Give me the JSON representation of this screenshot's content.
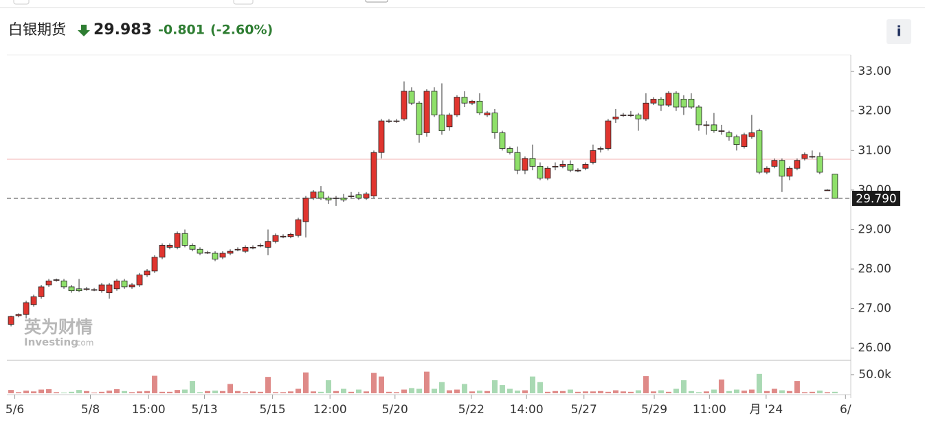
{
  "header": {
    "name": "白银期货",
    "price": "29.983",
    "change": "-0.801",
    "change_pct": "(-2.60%)",
    "info": "i"
  },
  "watermark": {
    "cn": "英为财情",
    "en": "Investing",
    "domain": ".com"
  },
  "chart_data": {
    "type": "candlestick",
    "up_color": "#e0352f",
    "down_color": "#8fe06a",
    "volume_up_color": "#df8a88",
    "volume_down_color": "#a9d9b3",
    "xlim": [
      -0.55,
      111.1
    ],
    "xticks": [
      {
        "value": 0.5,
        "label": "5/6"
      },
      {
        "value": 10.5,
        "label": "5/8"
      },
      {
        "value": 18.2,
        "label": "15:00"
      },
      {
        "value": 25.6,
        "label": "5/13"
      },
      {
        "value": 34.6,
        "label": "5/15"
      },
      {
        "value": 42.2,
        "label": "12:00"
      },
      {
        "value": 50.8,
        "label": "5/20"
      },
      {
        "value": 60.9,
        "label": "5/22"
      },
      {
        "value": 68.2,
        "label": "14:00"
      },
      {
        "value": 75.8,
        "label": "5/27"
      },
      {
        "value": 85.1,
        "label": "5/29"
      },
      {
        "value": 92.4,
        "label": "11:00"
      },
      {
        "value": 99.9,
        "label": "月 '24"
      },
      {
        "value": 110.4,
        "label": "6/"
      }
    ],
    "ylim": [
      25.69,
      33.42
    ],
    "yticks": [
      {
        "value": 26,
        "label": "26.00"
      },
      {
        "value": 27,
        "label": "27.00"
      },
      {
        "value": 28,
        "label": "28.00"
      },
      {
        "value": 29,
        "label": "29.00"
      },
      {
        "value": 30,
        "label": "30.00"
      },
      {
        "value": 31,
        "label": "31.00"
      },
      {
        "value": 32,
        "label": "32.00"
      },
      {
        "value": 33,
        "label": "33.00"
      }
    ],
    "volume_ylim": [
      0,
      83000
    ],
    "volume_ticks": [
      {
        "value": 50000,
        "label": "50.0k"
      }
    ],
    "ref_line": 30.78,
    "ref_color": "#f3b3b3",
    "last_price": {
      "value": 29.79,
      "label": "29.790"
    },
    "candles": [
      {
        "o": 26.6,
        "h": 26.82,
        "l": 26.55,
        "c": 26.8,
        "v": 9000
      },
      {
        "o": 26.82,
        "h": 26.88,
        "l": 26.78,
        "c": 26.85,
        "v": 3000
      },
      {
        "o": 26.85,
        "h": 27.2,
        "l": 26.75,
        "c": 27.15,
        "v": 7000
      },
      {
        "o": 27.1,
        "h": 27.35,
        "l": 27.05,
        "c": 27.3,
        "v": 5000
      },
      {
        "o": 27.3,
        "h": 27.6,
        "l": 27.25,
        "c": 27.55,
        "v": 10000
      },
      {
        "o": 27.6,
        "h": 27.75,
        "l": 27.55,
        "c": 27.7,
        "v": 11000
      },
      {
        "o": 27.72,
        "h": 27.76,
        "l": 27.68,
        "c": 27.73,
        "v": 3000
      },
      {
        "o": 27.7,
        "h": 27.75,
        "l": 27.5,
        "c": 27.55,
        "v": 2000
      },
      {
        "o": 27.55,
        "h": 27.6,
        "l": 27.4,
        "c": 27.45,
        "v": 4000
      },
      {
        "o": 27.5,
        "h": 27.75,
        "l": 27.42,
        "c": 27.45,
        "v": 9000
      },
      {
        "o": 27.5,
        "h": 27.55,
        "l": 27.45,
        "c": 27.5,
        "v": 6000
      },
      {
        "o": 27.48,
        "h": 27.52,
        "l": 27.44,
        "c": 27.48,
        "v": 2000
      },
      {
        "o": 27.45,
        "h": 27.65,
        "l": 27.4,
        "c": 27.6,
        "v": 4000
      },
      {
        "o": 27.4,
        "h": 27.65,
        "l": 27.25,
        "c": 27.6,
        "v": 7000
      },
      {
        "o": 27.5,
        "h": 27.75,
        "l": 27.45,
        "c": 27.7,
        "v": 11000
      },
      {
        "o": 27.7,
        "h": 27.75,
        "l": 27.5,
        "c": 27.55,
        "v": 6000
      },
      {
        "o": 27.55,
        "h": 27.65,
        "l": 27.5,
        "c": 27.6,
        "v": 3000
      },
      {
        "o": 27.6,
        "h": 27.9,
        "l": 27.55,
        "c": 27.85,
        "v": 5000
      },
      {
        "o": 27.85,
        "h": 28.0,
        "l": 27.8,
        "c": 27.95,
        "v": 6000
      },
      {
        "o": 27.95,
        "h": 28.35,
        "l": 27.9,
        "c": 28.3,
        "v": 47000
      },
      {
        "o": 28.3,
        "h": 28.65,
        "l": 28.25,
        "c": 28.6,
        "v": 4000
      },
      {
        "o": 28.55,
        "h": 28.65,
        "l": 28.5,
        "c": 28.6,
        "v": 4000
      },
      {
        "o": 28.55,
        "h": 28.95,
        "l": 28.5,
        "c": 28.9,
        "v": 9000
      },
      {
        "o": 28.9,
        "h": 29.0,
        "l": 28.55,
        "c": 28.6,
        "v": 10000
      },
      {
        "o": 28.6,
        "h": 28.65,
        "l": 28.45,
        "c": 28.5,
        "v": 33000
      },
      {
        "o": 28.5,
        "h": 28.55,
        "l": 28.35,
        "c": 28.4,
        "v": 3000
      },
      {
        "o": 28.42,
        "h": 28.46,
        "l": 28.38,
        "c": 28.42,
        "v": 6000
      },
      {
        "o": 28.4,
        "h": 28.45,
        "l": 28.2,
        "c": 28.25,
        "v": 7000
      },
      {
        "o": 28.3,
        "h": 28.45,
        "l": 28.25,
        "c": 28.4,
        "v": 6000
      },
      {
        "o": 28.4,
        "h": 28.5,
        "l": 28.35,
        "c": 28.45,
        "v": 25000
      },
      {
        "o": 28.5,
        "h": 28.55,
        "l": 28.45,
        "c": 28.5,
        "v": 6000
      },
      {
        "o": 28.45,
        "h": 28.6,
        "l": 28.4,
        "c": 28.55,
        "v": 3000
      },
      {
        "o": 28.55,
        "h": 28.6,
        "l": 28.5,
        "c": 28.55,
        "v": 5000
      },
      {
        "o": 28.6,
        "h": 28.65,
        "l": 28.55,
        "c": 28.6,
        "v": 4000
      },
      {
        "o": 28.55,
        "h": 29.0,
        "l": 28.35,
        "c": 28.7,
        "v": 44000
      },
      {
        "o": 28.7,
        "h": 28.9,
        "l": 28.65,
        "c": 28.85,
        "v": 3000
      },
      {
        "o": 28.83,
        "h": 28.88,
        "l": 28.78,
        "c": 28.83,
        "v": 3000
      },
      {
        "o": 28.82,
        "h": 28.92,
        "l": 28.78,
        "c": 28.88,
        "v": 5000
      },
      {
        "o": 28.85,
        "h": 29.3,
        "l": 28.8,
        "c": 29.25,
        "v": 12000
      },
      {
        "o": 29.2,
        "h": 29.85,
        "l": 28.8,
        "c": 29.8,
        "v": 56000
      },
      {
        "o": 29.8,
        "h": 30.0,
        "l": 29.75,
        "c": 29.95,
        "v": 5000
      },
      {
        "o": 29.95,
        "h": 30.1,
        "l": 29.75,
        "c": 29.8,
        "v": 4000
      },
      {
        "o": 29.8,
        "h": 29.85,
        "l": 29.65,
        "c": 29.75,
        "v": 35000
      },
      {
        "o": 29.8,
        "h": 29.85,
        "l": 29.6,
        "c": 29.8,
        "v": 6000
      },
      {
        "o": 29.8,
        "h": 29.9,
        "l": 29.7,
        "c": 29.75,
        "v": 12000
      },
      {
        "o": 29.85,
        "h": 29.95,
        "l": 29.8,
        "c": 29.85,
        "v": 4000
      },
      {
        "o": 29.88,
        "h": 29.95,
        "l": 29.75,
        "c": 29.8,
        "v": 10000
      },
      {
        "o": 29.8,
        "h": 29.95,
        "l": 29.75,
        "c": 29.9,
        "v": 5000
      },
      {
        "o": 29.85,
        "h": 31.0,
        "l": 29.8,
        "c": 30.95,
        "v": 55000
      },
      {
        "o": 30.95,
        "h": 31.8,
        "l": 30.8,
        "c": 31.75,
        "v": 45000
      },
      {
        "o": 31.75,
        "h": 31.8,
        "l": 31.7,
        "c": 31.75,
        "v": 4000
      },
      {
        "o": 31.75,
        "h": 31.8,
        "l": 31.7,
        "c": 31.75,
        "v": 3000
      },
      {
        "o": 31.8,
        "h": 32.75,
        "l": 31.75,
        "c": 32.5,
        "v": 10000
      },
      {
        "o": 32.5,
        "h": 32.6,
        "l": 32.15,
        "c": 32.2,
        "v": 14000
      },
      {
        "o": 32.2,
        "h": 32.25,
        "l": 31.2,
        "c": 31.4,
        "v": 12000
      },
      {
        "o": 31.45,
        "h": 32.55,
        "l": 31.35,
        "c": 32.5,
        "v": 58000
      },
      {
        "o": 32.5,
        "h": 32.6,
        "l": 31.85,
        "c": 31.9,
        "v": 12000
      },
      {
        "o": 31.9,
        "h": 32.7,
        "l": 31.4,
        "c": 31.5,
        "v": 30000
      },
      {
        "o": 31.6,
        "h": 31.95,
        "l": 31.5,
        "c": 31.9,
        "v": 8000
      },
      {
        "o": 31.9,
        "h": 32.4,
        "l": 31.85,
        "c": 32.35,
        "v": 10000
      },
      {
        "o": 32.35,
        "h": 32.5,
        "l": 32.1,
        "c": 32.2,
        "v": 25000
      },
      {
        "o": 32.2,
        "h": 32.28,
        "l": 32.15,
        "c": 32.25,
        "v": 5000
      },
      {
        "o": 32.25,
        "h": 32.45,
        "l": 31.9,
        "c": 31.95,
        "v": 7000
      },
      {
        "o": 31.9,
        "h": 32.0,
        "l": 31.85,
        "c": 31.95,
        "v": 6000
      },
      {
        "o": 31.95,
        "h": 32.05,
        "l": 31.3,
        "c": 31.45,
        "v": 35000
      },
      {
        "o": 31.45,
        "h": 31.5,
        "l": 31.0,
        "c": 31.05,
        "v": 22000
      },
      {
        "o": 31.05,
        "h": 31.1,
        "l": 30.9,
        "c": 30.95,
        "v": 12000
      },
      {
        "o": 30.95,
        "h": 31.1,
        "l": 30.4,
        "c": 30.5,
        "v": 7000
      },
      {
        "o": 30.5,
        "h": 30.85,
        "l": 30.4,
        "c": 30.8,
        "v": 8000
      },
      {
        "o": 30.8,
        "h": 31.15,
        "l": 30.5,
        "c": 30.6,
        "v": 45000
      },
      {
        "o": 30.6,
        "h": 30.7,
        "l": 30.25,
        "c": 30.3,
        "v": 30000
      },
      {
        "o": 30.3,
        "h": 30.6,
        "l": 30.25,
        "c": 30.55,
        "v": 4000
      },
      {
        "o": 30.6,
        "h": 30.7,
        "l": 30.5,
        "c": 30.6,
        "v": 6000
      },
      {
        "o": 30.6,
        "h": 30.75,
        "l": 30.55,
        "c": 30.65,
        "v": 6000
      },
      {
        "o": 30.65,
        "h": 30.75,
        "l": 30.45,
        "c": 30.5,
        "v": 10000
      },
      {
        "o": 30.5,
        "h": 30.55,
        "l": 30.45,
        "c": 30.5,
        "v": 4000
      },
      {
        "o": 30.55,
        "h": 30.7,
        "l": 30.5,
        "c": 30.65,
        "v": 5000
      },
      {
        "o": 30.7,
        "h": 31.15,
        "l": 30.65,
        "c": 31.0,
        "v": 5000
      },
      {
        "o": 31.05,
        "h": 31.1,
        "l": 30.95,
        "c": 31.05,
        "v": 6000
      },
      {
        "o": 31.05,
        "h": 31.8,
        "l": 31.0,
        "c": 31.75,
        "v": 4000
      },
      {
        "o": 31.8,
        "h": 32.05,
        "l": 31.7,
        "c": 31.85,
        "v": 8000
      },
      {
        "o": 31.9,
        "h": 31.95,
        "l": 31.85,
        "c": 31.9,
        "v": 5000
      },
      {
        "o": 31.9,
        "h": 32.0,
        "l": 31.85,
        "c": 31.9,
        "v": 4000
      },
      {
        "o": 31.9,
        "h": 31.95,
        "l": 31.5,
        "c": 31.8,
        "v": 8000
      },
      {
        "o": 31.8,
        "h": 32.45,
        "l": 31.75,
        "c": 32.2,
        "v": 46000
      },
      {
        "o": 32.2,
        "h": 32.35,
        "l": 32.15,
        "c": 32.3,
        "v": 5000
      },
      {
        "o": 32.3,
        "h": 32.35,
        "l": 32.0,
        "c": 32.15,
        "v": 8000
      },
      {
        "o": 32.15,
        "h": 32.5,
        "l": 32.1,
        "c": 32.45,
        "v": 4000
      },
      {
        "o": 32.45,
        "h": 32.5,
        "l": 32.0,
        "c": 32.1,
        "v": 12000
      },
      {
        "o": 32.3,
        "h": 32.4,
        "l": 31.9,
        "c": 32.1,
        "v": 35000
      },
      {
        "o": 32.3,
        "h": 32.45,
        "l": 32.05,
        "c": 32.1,
        "v": 6000
      },
      {
        "o": 32.1,
        "h": 32.15,
        "l": 31.5,
        "c": 31.65,
        "v": 3000
      },
      {
        "o": 31.65,
        "h": 31.75,
        "l": 31.4,
        "c": 31.65,
        "v": 5000
      },
      {
        "o": 31.65,
        "h": 31.95,
        "l": 31.45,
        "c": 31.5,
        "v": 10000
      },
      {
        "o": 31.5,
        "h": 31.65,
        "l": 31.4,
        "c": 31.5,
        "v": 37000
      },
      {
        "o": 31.45,
        "h": 31.5,
        "l": 31.25,
        "c": 31.35,
        "v": 6000
      },
      {
        "o": 31.35,
        "h": 31.4,
        "l": 31.0,
        "c": 31.15,
        "v": 10000
      },
      {
        "o": 31.1,
        "h": 31.45,
        "l": 31.05,
        "c": 31.4,
        "v": 7000
      },
      {
        "o": 31.35,
        "h": 31.9,
        "l": 31.3,
        "c": 31.45,
        "v": 10000
      },
      {
        "o": 31.5,
        "h": 31.55,
        "l": 30.4,
        "c": 30.45,
        "v": 52000
      },
      {
        "o": 30.45,
        "h": 30.6,
        "l": 30.4,
        "c": 30.55,
        "v": 6000
      },
      {
        "o": 30.6,
        "h": 30.8,
        "l": 30.55,
        "c": 30.75,
        "v": 12000
      },
      {
        "o": 30.75,
        "h": 30.8,
        "l": 29.95,
        "c": 30.35,
        "v": 8000
      },
      {
        "o": 30.35,
        "h": 30.6,
        "l": 30.25,
        "c": 30.55,
        "v": 6000
      },
      {
        "o": 30.55,
        "h": 30.8,
        "l": 30.5,
        "c": 30.75,
        "v": 33000
      },
      {
        "o": 30.8,
        "h": 30.95,
        "l": 30.75,
        "c": 30.9,
        "v": 3000
      },
      {
        "o": 30.85,
        "h": 31.0,
        "l": 30.8,
        "c": 30.85,
        "v": 4000
      },
      {
        "o": 30.85,
        "h": 30.95,
        "l": 30.4,
        "c": 30.45,
        "v": 7000
      },
      {
        "o": 30.0,
        "h": 30.02,
        "l": 29.98,
        "c": 30.0,
        "v": 3000
      },
      {
        "o": 30.4,
        "h": 30.4,
        "l": 29.79,
        "c": 29.79,
        "v": 4000
      }
    ]
  }
}
